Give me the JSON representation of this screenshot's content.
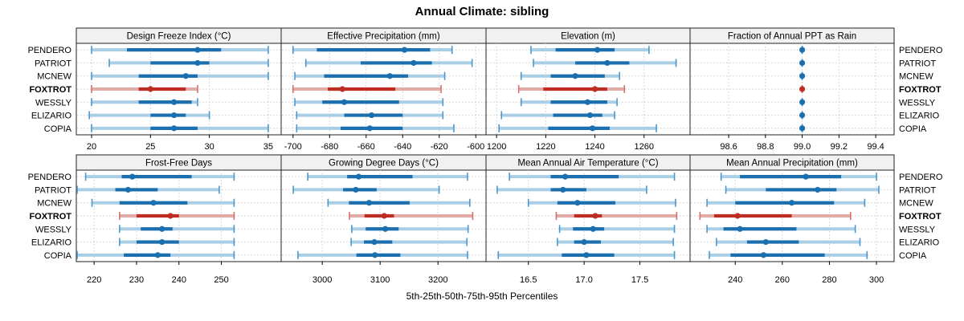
{
  "title": "Annual Climate: sibling",
  "footnote": "5th-25th-50th-75th-95th Percentiles",
  "sites": [
    "PENDERO",
    "PATRIOT",
    "MCNEW",
    "FOXTROT",
    "WESSLY",
    "ELIZARIO",
    "COPIA"
  ],
  "highlight_site": "FOXTROT",
  "percentiles": [
    "5th",
    "25th",
    "50th",
    "75th",
    "95th"
  ],
  "colors": {
    "blue_dark": "#1c6fae",
    "blue_light": "#a9cee6",
    "blue_cap": "#4c97cb",
    "red_dark": "#bf2c24",
    "red_light": "#e3aba6",
    "red_cap": "#d4736b",
    "grid": "#cbcbcb",
    "frame": "#222222",
    "header_bg": "#f1f1f1",
    "text": "#000000"
  },
  "chart_data": [
    {
      "type": "percentile_dot",
      "title": "Design Freeze Index (°C)",
      "xlim": [
        18.7,
        36.1
      ],
      "tick_values": [
        20,
        25,
        30,
        35
      ],
      "tick_labels": [
        "20",
        "25",
        "30",
        "35"
      ],
      "series": [
        {
          "site": "PENDERO",
          "p": [
            20,
            23,
            29,
            31,
            35
          ]
        },
        {
          "site": "PATRIOT",
          "p": [
            21.5,
            25,
            29,
            30,
            35
          ]
        },
        {
          "site": "MCNEW",
          "p": [
            20,
            24,
            28,
            29,
            35
          ]
        },
        {
          "site": "FOXTROT",
          "p": [
            20,
            24,
            25,
            28,
            29
          ]
        },
        {
          "site": "WESSLY",
          "p": [
            20,
            24,
            27,
            28.5,
            29
          ]
        },
        {
          "site": "ELIZARIO",
          "p": [
            19.8,
            25,
            27,
            28,
            30
          ]
        },
        {
          "site": "COPIA",
          "p": [
            20,
            25,
            27,
            29,
            35
          ]
        }
      ]
    },
    {
      "type": "percentile_dot",
      "title": "Effective Precipitation (mm)",
      "xlim": [
        -706.5,
        -594.4
      ],
      "tick_values": [
        -700,
        -680,
        -660,
        -640,
        -620,
        -600
      ],
      "tick_labels": [
        "-700",
        "-680",
        "-660",
        "-640",
        "-620",
        "-600"
      ],
      "series": [
        {
          "site": "PENDERO",
          "p": [
            -700,
            -687,
            -639,
            -625,
            -613
          ]
        },
        {
          "site": "PATRIOT",
          "p": [
            -693,
            -663,
            -634,
            -624,
            -602
          ]
        },
        {
          "site": "MCNEW",
          "p": [
            -699,
            -683,
            -647,
            -637,
            -617
          ]
        },
        {
          "site": "FOXTROT",
          "p": [
            -700,
            -681,
            -673,
            -644,
            -619
          ]
        },
        {
          "site": "WESSLY",
          "p": [
            -699,
            -684,
            -672,
            -642,
            -618
          ]
        },
        {
          "site": "ELIZARIO",
          "p": [
            -698,
            -672,
            -657,
            -640,
            -618
          ]
        },
        {
          "site": "COPIA",
          "p": [
            -698,
            -674,
            -658,
            -640,
            -612
          ]
        }
      ]
    },
    {
      "type": "percentile_dot",
      "title": "Elevation (m)",
      "xlim": [
        1195.7,
        1278.7
      ],
      "tick_values": [
        1200,
        1220,
        1240,
        1260
      ],
      "tick_labels": [
        "1200",
        "1220",
        "1240",
        "1260"
      ],
      "series": [
        {
          "site": "PENDERO",
          "p": [
            1214,
            1224,
            1241,
            1248,
            1262
          ]
        },
        {
          "site": "PATRIOT",
          "p": [
            1215,
            1232,
            1245,
            1254,
            1273
          ]
        },
        {
          "site": "MCNEW",
          "p": [
            1210,
            1222,
            1232,
            1244,
            1250
          ]
        },
        {
          "site": "FOXTROT",
          "p": [
            1209,
            1219,
            1240,
            1245,
            1252
          ]
        },
        {
          "site": "WESSLY",
          "p": [
            1210,
            1222,
            1237,
            1245,
            1249
          ]
        },
        {
          "site": "ELIZARIO",
          "p": [
            1202,
            1223,
            1238,
            1243,
            1248
          ]
        },
        {
          "site": "COPIA",
          "p": [
            1201,
            1221,
            1239,
            1246,
            1265
          ]
        }
      ]
    },
    {
      "type": "percentile_dot",
      "title": "Fraction of Annual PPT as Rain",
      "xlim": [
        98.39,
        99.5
      ],
      "tick_values": [
        98.6,
        98.8,
        99.0,
        99.2,
        99.4
      ],
      "tick_labels": [
        "98.6",
        "98.8",
        "99.0",
        "99.2",
        "99.4"
      ],
      "series": [
        {
          "site": "PENDERO",
          "p": [
            99,
            99,
            99,
            99,
            99
          ]
        },
        {
          "site": "PATRIOT",
          "p": [
            99,
            99,
            99,
            99,
            99
          ]
        },
        {
          "site": "MCNEW",
          "p": [
            99,
            99,
            99,
            99,
            99
          ]
        },
        {
          "site": "FOXTROT",
          "p": [
            99,
            99,
            99,
            99,
            99
          ]
        },
        {
          "site": "WESSLY",
          "p": [
            99,
            99,
            99,
            99,
            99
          ]
        },
        {
          "site": "ELIZARIO",
          "p": [
            99,
            99,
            99,
            99,
            99
          ]
        },
        {
          "site": "COPIA",
          "p": [
            99,
            99,
            99,
            99,
            99
          ]
        }
      ]
    },
    {
      "type": "percentile_dot",
      "title": "Frost-Free Days",
      "xlim": [
        215.8,
        264.1
      ],
      "tick_values": [
        220,
        230,
        240,
        250
      ],
      "tick_labels": [
        "220",
        "230",
        "240",
        "250"
      ],
      "series": [
        {
          "site": "PENDERO",
          "p": [
            218,
            226.5,
            229,
            243,
            253
          ]
        },
        {
          "site": "PATRIOT",
          "p": [
            216,
            225,
            228,
            235,
            249.5
          ]
        },
        {
          "site": "MCNEW",
          "p": [
            219.5,
            226,
            234,
            242,
            253
          ]
        },
        {
          "site": "FOXTROT",
          "p": [
            226,
            230,
            238,
            240,
            253
          ]
        },
        {
          "site": "WESSLY",
          "p": [
            226,
            231,
            236,
            238.5,
            253
          ]
        },
        {
          "site": "ELIZARIO",
          "p": [
            226,
            230,
            236,
            240,
            253
          ]
        },
        {
          "site": "COPIA",
          "p": [
            216,
            227,
            235,
            238,
            253
          ]
        }
      ]
    },
    {
      "type": "percentile_dot",
      "title": "Growing Degree Days (°C)",
      "xlim": [
        2929,
        3283
      ],
      "tick_values": [
        3000,
        3100,
        3200
      ],
      "tick_labels": [
        "3000",
        "3100",
        "3200"
      ],
      "series": [
        {
          "site": "PENDERO",
          "p": [
            2975,
            3043,
            3063,
            3156,
            3251
          ]
        },
        {
          "site": "PATRIOT",
          "p": [
            2950,
            3036,
            3058,
            3094,
            3202
          ]
        },
        {
          "site": "MCNEW",
          "p": [
            3010,
            3046,
            3081,
            3151,
            3255
          ]
        },
        {
          "site": "FOXTROT",
          "p": [
            3047,
            3073,
            3107,
            3124,
            3260
          ]
        },
        {
          "site": "WESSLY",
          "p": [
            3051,
            3075,
            3109,
            3132,
            3252
          ]
        },
        {
          "site": "ELIZARIO",
          "p": [
            3050,
            3072,
            3090,
            3121,
            3250
          ]
        },
        {
          "site": "COPIA",
          "p": [
            2958,
            3059,
            3091,
            3135,
            3251
          ]
        }
      ]
    },
    {
      "type": "percentile_dot",
      "title": "Mean Annual Air Temperature (°C)",
      "xlim": [
        16.12,
        17.95
      ],
      "tick_values": [
        16.5,
        17.0,
        17.5
      ],
      "tick_labels": [
        "16.5",
        "17.0",
        "17.5"
      ],
      "series": [
        {
          "site": "PENDERO",
          "p": [
            16.33,
            16.7,
            16.83,
            17.31,
            17.81
          ]
        },
        {
          "site": "PATRIOT",
          "p": [
            16.22,
            16.7,
            16.81,
            17.02,
            17.56
          ]
        },
        {
          "site": "MCNEW",
          "p": [
            16.5,
            16.76,
            16.94,
            17.28,
            17.82
          ]
        },
        {
          "site": "FOXTROT",
          "p": [
            16.75,
            16.91,
            17.1,
            17.16,
            17.83
          ]
        },
        {
          "site": "WESSLY",
          "p": [
            16.78,
            16.9,
            17.08,
            17.18,
            17.81
          ]
        },
        {
          "site": "ELIZARIO",
          "p": [
            16.76,
            16.91,
            17.0,
            17.15,
            17.8
          ]
        },
        {
          "site": "COPIA",
          "p": [
            16.23,
            16.8,
            17.02,
            17.27,
            17.81
          ]
        }
      ]
    },
    {
      "type": "percentile_dot",
      "title": "Mean Annual Precipitation (mm)",
      "xlim": [
        220.8,
        307.5
      ],
      "tick_values": [
        240,
        260,
        280,
        300
      ],
      "tick_labels": [
        "240",
        "260",
        "280",
        "300"
      ],
      "series": [
        {
          "site": "PENDERO",
          "p": [
            234,
            242,
            270,
            285,
            300
          ]
        },
        {
          "site": "PATRIOT",
          "p": [
            236,
            253,
            275,
            283,
            301
          ]
        },
        {
          "site": "MCNEW",
          "p": [
            228,
            240,
            264,
            282,
            295
          ]
        },
        {
          "site": "FOXTROT",
          "p": [
            225,
            231,
            241,
            264,
            289
          ]
        },
        {
          "site": "WESSLY",
          "p": [
            228,
            235,
            242,
            266,
            291
          ]
        },
        {
          "site": "ELIZARIO",
          "p": [
            232,
            245,
            253,
            267,
            293
          ]
        },
        {
          "site": "COPIA",
          "p": [
            229,
            238,
            252,
            278,
            296
          ]
        }
      ]
    }
  ]
}
